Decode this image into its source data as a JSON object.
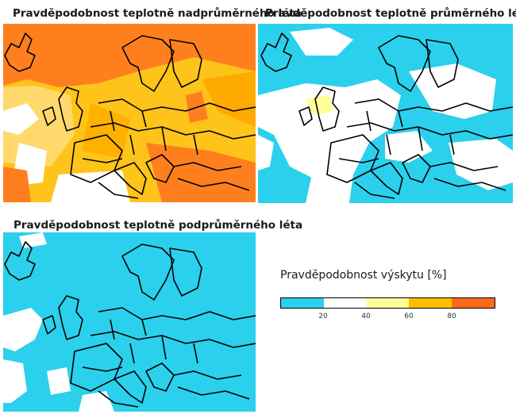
{
  "panels": [
    {
      "id": "above",
      "title": "Pravděpodobnost teplotně nadprůměrného léta",
      "dominant_class": "60-80",
      "dominant_color": "#ffc000"
    },
    {
      "id": "normal",
      "title": "Pravděpodobnost teplotně průměrného léta",
      "dominant_class": "0-20",
      "dominant_color": "#00ccee"
    },
    {
      "id": "below",
      "title": "Pravděpodobnost teplotně podprůměrného léta",
      "dominant_class": "0-20",
      "dominant_color": "#00ccee"
    }
  ],
  "legend": {
    "title": "Pravděpodobnost výskytu [%]",
    "ticks": [
      "20",
      "40",
      "60",
      "80"
    ],
    "colors": [
      "#2bd0ec",
      "#ffffff",
      "#ffff99",
      "#ffbf00",
      "#ff6a1a"
    ]
  }
}
